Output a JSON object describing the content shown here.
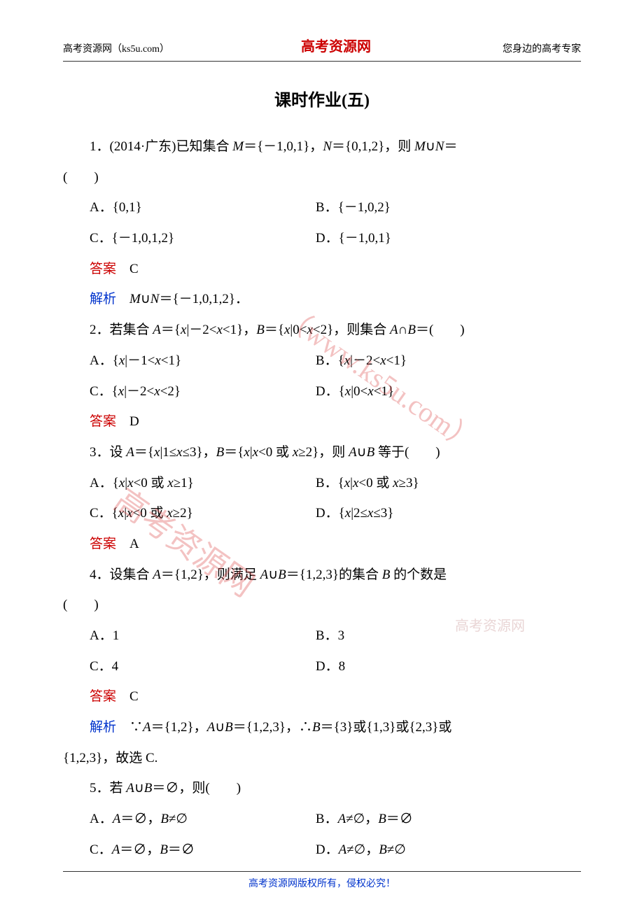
{
  "header": {
    "left": "高考资源网（ks5u.com）",
    "center": "高考资源网",
    "right": "您身边的高考专家"
  },
  "title": "课时作业(五)",
  "questions": [
    {
      "stem_parts": [
        "1．(2014·广东)已知集合 ",
        "M",
        "＝{－1,0,1}，",
        "N",
        "＝{0,1,2}，则 ",
        "M",
        "∪",
        "N",
        "＝"
      ],
      "paren": "(　　)",
      "options": {
        "A": "A．{0,1}",
        "B": "B．{－1,0,2}",
        "C": "C．{－1,0,1,2}",
        "D": "D．{－1,0,1}"
      },
      "answer_label": "答案",
      "answer": "　C",
      "analysis_label": "解析",
      "analysis_parts": [
        "　",
        "M",
        "∪",
        "N",
        "＝{－1,0,1,2}．"
      ]
    },
    {
      "stem_parts": [
        "2．若集合 ",
        "A",
        "＝{",
        "x",
        "|－2<",
        "x",
        "<1}，",
        "B",
        "＝{",
        "x",
        "|0<",
        "x",
        "<2}，则集合 ",
        "A",
        "∩",
        "B",
        "＝(　　)"
      ],
      "options": {
        "A_parts": [
          "A．{",
          "x",
          "|－1<",
          "x",
          "<1}"
        ],
        "B_parts": [
          "B．{",
          "x",
          "|－2<",
          "x",
          "<1}"
        ],
        "C_parts": [
          "C．{",
          "x",
          "|－2<",
          "x",
          "<2}"
        ],
        "D_parts": [
          "D．{",
          "x",
          "|0<",
          "x",
          "<1}"
        ]
      },
      "answer_label": "答案",
      "answer": "　D"
    },
    {
      "stem_parts": [
        "3．设 ",
        "A",
        "＝{",
        "x",
        "|1≤",
        "x",
        "≤3}，",
        "B",
        "＝{",
        "x",
        "|",
        "x",
        "<0 或 ",
        "x",
        "≥2}，则 ",
        "A",
        "∪",
        "B",
        " 等于(　　)"
      ],
      "options": {
        "A_parts": [
          "A．{",
          "x",
          "|",
          "x",
          "<0 或 ",
          "x",
          "≥1}"
        ],
        "B_parts": [
          "B．{",
          "x",
          "|",
          "x",
          "<0 或 ",
          "x",
          "≥3}"
        ],
        "C_parts": [
          "C．{",
          "x",
          "|",
          "x",
          "<0 或 ",
          "x",
          "≥2}"
        ],
        "D_parts": [
          "D．{",
          "x",
          "|2≤",
          "x",
          "≤3}"
        ]
      },
      "answer_label": "答案",
      "answer": "　A"
    },
    {
      "stem_parts": [
        "4．设集合 ",
        "A",
        "＝{1,2}，则满足 ",
        "A",
        "∪",
        "B",
        "＝{1,2,3}的集合 ",
        "B",
        " 的个数是"
      ],
      "paren": "(　　)",
      "options": {
        "A": "A．1",
        "B": "B．3",
        "C": "C．4",
        "D": "D．8"
      },
      "answer_label": "答案",
      "answer": "　C",
      "analysis_label": "解析",
      "analysis_parts": [
        "　∵",
        "A",
        "＝{1,2}，",
        "A",
        "∪",
        "B",
        "＝{1,2,3}，∴",
        "B",
        "＝{3}或{1,3}或{2,3}或"
      ],
      "analysis_cont": "{1,2,3}，故选 C."
    },
    {
      "stem_parts": [
        "5．若 ",
        "A",
        "∪",
        "B",
        "＝∅，则(　　)"
      ],
      "options": {
        "A_parts": [
          "A．",
          "A",
          "＝∅，",
          "B",
          "≠∅"
        ],
        "B_parts": [
          "B．",
          "A",
          "≠∅，",
          "B",
          "＝∅"
        ],
        "C_parts": [
          "C．",
          "A",
          "＝∅，",
          "B",
          "＝∅"
        ],
        "D_parts": [
          "D．",
          "A",
          "≠∅，",
          "B",
          "≠∅"
        ]
      }
    }
  ],
  "footer": "高考资源网版权所有，侵权必究！",
  "watermarks": {
    "main": "高考资源网",
    "url": "（www.ks5u.com）",
    "small": "高考资源网"
  },
  "colors": {
    "answer": "#cc0000",
    "analysis": "#0033cc",
    "header_center": "#cc0000",
    "footer": "#0033cc",
    "text": "#000000"
  }
}
